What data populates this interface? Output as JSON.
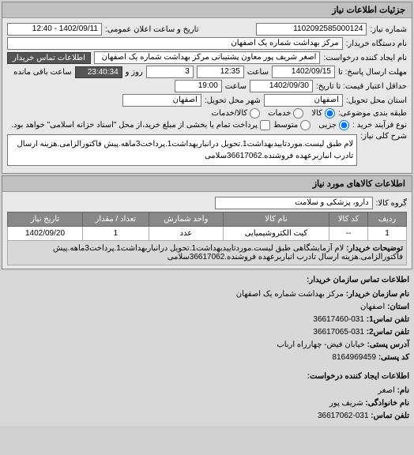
{
  "panel1_title": "جزئیات اطلاعات نیاز",
  "request_number_label": "شماره نیاز:",
  "request_number": "1102092585000124",
  "announce_label": "تاریخ و ساعت اعلان عمومی:",
  "announce_value": "1402/09/11 - 12:40",
  "org_name_label": "نام دستگاه خریدار:",
  "org_name": "مرکز بهداشت شماره یک اصفهان",
  "requester_label": "نام ایجاد کننده درخواست:",
  "requester_name": "اصغر شریف پور معاون پشتیبانی مرکز بهداشت شماره یک اصفهان",
  "contact_btn": "اطلاعات تماس خریدار",
  "deadline_send_label": "مهلت ارسال پاسخ: تا",
  "deadline_send_date": "1402/09/15",
  "time_label": "ساعت",
  "deadline_send_time": "12:35",
  "remain_label_days": "روز و",
  "remain_days": "3",
  "remain_time": "23:40:34",
  "remain_label_end": "ساعت باقی مانده",
  "price_valid_label": "حداقل اعتبار قیمت: تا تاریخ:",
  "price_valid_date": "1402/09/30",
  "price_valid_time": "19:00",
  "delivery_province_label": "استان محل تحویل:",
  "delivery_province": "اصفهان",
  "delivery_city_label": "شهر محل تحویل:",
  "delivery_city": "اصفهان",
  "group_type_label": "طبقه بندی موضوعی:",
  "group_kala": "کالا",
  "group_khadamat": "خدمات",
  "group_both": "کالا/خدمات",
  "buy_type_label": "نوع فرآیند خرید :",
  "buy_jozei": "جزیی",
  "buy_motevaset": "متوسط",
  "payment_note": "پرداخت تمام یا بخشی از مبلغ خرید،از محل \"اسناد خزانه اسلامی\" خواهد بود.",
  "general_desc_label": "شرح کلی نیاز:",
  "general_desc": "لام طبق لیست.موردتاییدبهداشت1.تحویل درانباربهداشت1.پرداخت3ماهه.پیش فاکتورالزامی.هزینه ارسال تادرب انباربرعهده فروشنده.36617062سلامی",
  "panel2_title": "اطلاعات کالاهای مورد نیاز",
  "goods_group_label": "گروه کالا:",
  "goods_group": "دارو، پزشکی و سلامت",
  "table": {
    "headers": [
      "ردیف",
      "کد کالا",
      "نام کالا",
      "واحد شمارش",
      "تعداد / مقدار",
      "تاریخ نیاز"
    ],
    "row": [
      "1",
      "--",
      "کیت الکتروشیمیایی",
      "عدد",
      "1",
      "1402/09/20"
    ],
    "desc_label": "توضیحات خریدار:",
    "desc_text": "لام آزمایشگاهی طبق لیست.موردتاییدبهداشت1.تحویل درانباربهداشت1.پرداخت3ماهه.پیش فاکتورالزامی.هزینه ارسال تادرب انباربرعهده فروشنده.36617062سلامی"
  },
  "contact_buyer_title": "اطلاعات تماس سازمان خریدار:",
  "contact_buyer": {
    "org_label": "نام سازمان خریدار:",
    "org": "مرکز بهداشت شماره یک اصفهان",
    "province_label": "استان:",
    "province": "اصفهان",
    "phone1_label": "تلفن تماس1:",
    "phone1": "031-36617460",
    "phone2_label": "تلفن تماس2:",
    "phone2": "031-36617065",
    "address_label": "آدرس پستی:",
    "address": "خیابان فیض- چهارراه ارباب",
    "postal_label": "کد پستی:",
    "postal": "8164969459"
  },
  "contact_creator_title": "اطلاعات ایجاد کننده درخواست:",
  "contact_creator": {
    "name_label": "نام:",
    "name": "اصغر",
    "family_label": "نام خانوادگی:",
    "family": "شریف پور",
    "phone_label": "تلفن تماس:",
    "phone": "031-36617062"
  }
}
